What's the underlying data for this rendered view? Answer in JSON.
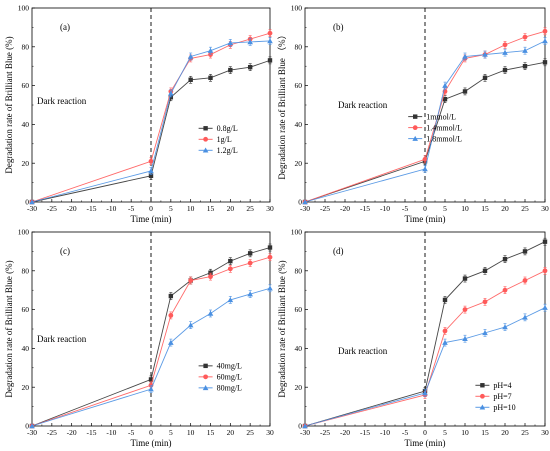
{
  "chart_data": [
    {
      "type": "line",
      "panel_label": "(a)",
      "annotation": "Dark reaction",
      "xlabel": "Time (min)",
      "ylabel": "Degradation rate of Brilliant Blue (%)",
      "xlim": [
        -30,
        30
      ],
      "ylim": [
        0,
        100
      ],
      "xticks": [
        -30,
        -25,
        -20,
        -15,
        -10,
        -5,
        0,
        5,
        10,
        15,
        20,
        25,
        30
      ],
      "yticks": [
        0,
        20,
        40,
        60,
        80,
        100
      ],
      "legend_position": "center-right",
      "x": [
        -30,
        0,
        5,
        10,
        15,
        20,
        25,
        30
      ],
      "series": [
        {
          "name": "0.8g/L",
          "color": "#333333",
          "marker": "square",
          "values": [
            0,
            13.5,
            54,
            63,
            64,
            68,
            69.5,
            73
          ]
        },
        {
          "name": "1g/L",
          "color": "#ff5a5a",
          "marker": "circle",
          "values": [
            0,
            21,
            57,
            74,
            76,
            81,
            84,
            87
          ]
        },
        {
          "name": "1.2g/L",
          "color": "#4a90e2",
          "marker": "triangle",
          "values": [
            0,
            16,
            56,
            75,
            78,
            82,
            82.5,
            83
          ]
        }
      ]
    },
    {
      "type": "line",
      "panel_label": "(b)",
      "annotation": "Dark reaction",
      "xlabel": "Time (min)",
      "ylabel": "Degradation rate of Brilliant Blue （%）",
      "xlim": [
        -30,
        30
      ],
      "ylim": [
        0,
        100
      ],
      "xticks": [
        -30,
        -25,
        -20,
        -15,
        -10,
        -5,
        0,
        5,
        10,
        15,
        20,
        25,
        30
      ],
      "yticks": [
        0,
        20,
        40,
        60,
        80,
        100
      ],
      "legend_position": "center-left",
      "x": [
        -30,
        0,
        5,
        10,
        15,
        20,
        25,
        30
      ],
      "series": [
        {
          "name": "1mmol/L",
          "color": "#333333",
          "marker": "square",
          "values": [
            0,
            21,
            53,
            57,
            64,
            68,
            70,
            72
          ]
        },
        {
          "name": "1.4mmol/L",
          "color": "#ff5a5a",
          "marker": "circle",
          "values": [
            0,
            22,
            57,
            74,
            76,
            81,
            85,
            88
          ]
        },
        {
          "name": "1.8mmol/L",
          "color": "#4a90e2",
          "marker": "triangle",
          "values": [
            0,
            17,
            60,
            75,
            76,
            77,
            78,
            83
          ]
        }
      ]
    },
    {
      "type": "line",
      "panel_label": "(c)",
      "annotation": "Dark reaction",
      "xlabel": "Time (min)",
      "ylabel": "Degradation rate of Brilliant Blue (%)",
      "xlim": [
        -30,
        30
      ],
      "ylim": [
        0,
        100
      ],
      "xticks": [
        -30,
        -25,
        -20,
        -15,
        -10,
        -5,
        0,
        5,
        10,
        15,
        20,
        25,
        30
      ],
      "yticks": [
        0,
        20,
        40,
        60,
        80,
        100
      ],
      "legend_position": "center-right",
      "x": [
        -30,
        0,
        5,
        10,
        15,
        20,
        25,
        30
      ],
      "series": [
        {
          "name": "40mg/L",
          "color": "#333333",
          "marker": "square",
          "values": [
            0,
            24,
            67,
            75,
            79,
            85,
            89,
            92
          ]
        },
        {
          "name": "60mg/L",
          "color": "#ff5a5a",
          "marker": "circle",
          "values": [
            0,
            21,
            57,
            75,
            77,
            81,
            84,
            87
          ]
        },
        {
          "name": "80mg/L",
          "color": "#4a90e2",
          "marker": "triangle",
          "values": [
            0,
            19,
            43,
            52,
            58,
            65,
            68,
            71
          ]
        }
      ]
    },
    {
      "type": "line",
      "panel_label": "(d)",
      "annotation": "Dark reaction",
      "xlabel": "Time (min)",
      "ylabel": "Degradation rate of Brilliant Blue (%)",
      "xlim": [
        -30,
        30
      ],
      "ylim": [
        0,
        100
      ],
      "xticks": [
        -30,
        -25,
        -20,
        -15,
        -10,
        -5,
        0,
        5,
        10,
        15,
        20,
        25,
        30
      ],
      "yticks": [
        0,
        20,
        40,
        60,
        80,
        100
      ],
      "legend_position": "bottom-right",
      "x": [
        -30,
        0,
        5,
        10,
        15,
        20,
        25,
        30
      ],
      "series": [
        {
          "name": "pH=4",
          "color": "#333333",
          "marker": "square",
          "values": [
            0,
            18,
            65,
            76,
            80,
            86,
            90,
            95
          ]
        },
        {
          "name": "pH=7",
          "color": "#ff5a5a",
          "marker": "circle",
          "values": [
            0,
            16,
            49,
            60,
            64,
            70,
            75,
            80
          ]
        },
        {
          "name": "pH=10",
          "color": "#4a90e2",
          "marker": "triangle",
          "values": [
            0,
            17,
            43,
            45,
            48,
            51,
            56,
            61
          ]
        }
      ]
    }
  ]
}
